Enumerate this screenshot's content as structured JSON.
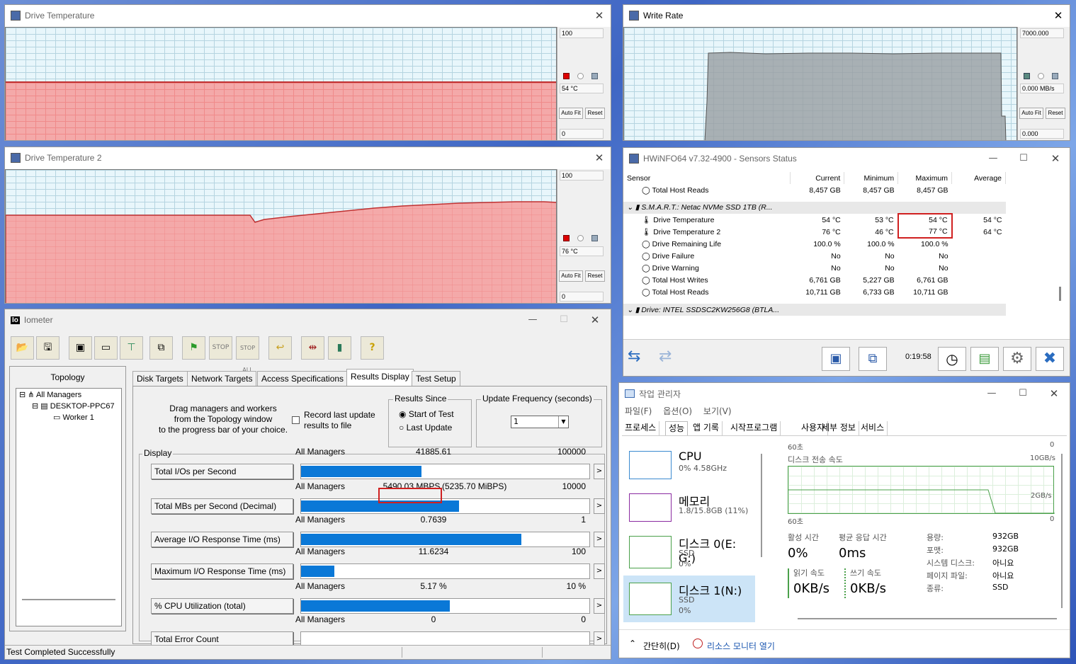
{
  "drive_temp": {
    "title": "Drive Temperature",
    "max": "100",
    "current": "54 °C",
    "min": "0",
    "autofit": "Auto Fit",
    "reset": "Reset",
    "level": 54
  },
  "drive_temp2": {
    "title": "Drive Temperature 2",
    "max": "100",
    "current": "76 °C",
    "min": "0",
    "autofit": "Auto Fit",
    "reset": "Reset"
  },
  "write_rate": {
    "title": "Write Rate",
    "max": "7000.000",
    "current": "0.000 MB/s",
    "min": "0.000",
    "autofit": "Auto Fit",
    "reset": "Reset"
  },
  "hwinfo": {
    "title": "HWiNFO64 v7.32-4900 - Sensors Status",
    "headers": [
      "Sensor",
      "Current",
      "Minimum",
      "Maximum",
      "Average"
    ],
    "top_row": {
      "name": "Total Host Reads",
      "current": "8,457 GB",
      "minimum": "8,457 GB",
      "maximum": "8,457 GB",
      "average": ""
    },
    "group1": "S.M.A.R.T.: Netac NVMe SSD 1TB (R...",
    "rows": [
      {
        "name": "Drive Temperature",
        "current": "54 °C",
        "minimum": "53 °C",
        "maximum": "54 °C",
        "average": "54 °C"
      },
      {
        "name": "Drive Temperature 2",
        "current": "76 °C",
        "minimum": "46 °C",
        "maximum": "77 °C",
        "average": "64 °C"
      },
      {
        "name": "Drive Remaining Life",
        "current": "100.0 %",
        "minimum": "100.0 %",
        "maximum": "100.0 %",
        "average": ""
      },
      {
        "name": "Drive Failure",
        "current": "No",
        "minimum": "No",
        "maximum": "No",
        "average": ""
      },
      {
        "name": "Drive Warning",
        "current": "No",
        "minimum": "No",
        "maximum": "No",
        "average": ""
      },
      {
        "name": "Total Host Writes",
        "current": "6,761 GB",
        "minimum": "5,227 GB",
        "maximum": "6,761 GB",
        "average": ""
      },
      {
        "name": "Total Host Reads",
        "current": "10,711 GB",
        "minimum": "6,733 GB",
        "maximum": "10,711 GB",
        "average": ""
      }
    ],
    "group2": "Drive: INTEL SSDSC2KW256G8 (BTLA...",
    "timer": "0:19:58"
  },
  "iometer": {
    "title": "Iometer",
    "topology_label": "Topology",
    "tree": [
      "All Managers",
      "DESKTOP-PPC67",
      "Worker 1"
    ],
    "tabs": [
      "Disk Targets",
      "Network Targets",
      "Access Specifications",
      "Results Display",
      "Test Setup"
    ],
    "drag_text": [
      "Drag managers and workers",
      "from the Topology window",
      "to the progress bar of your choice."
    ],
    "record_label": [
      "Record last update",
      "results to file"
    ],
    "results_since": {
      "title": "Results Since",
      "opt1": "Start of Test",
      "opt2": "Last Update"
    },
    "update_freq": {
      "title": "Update Frequency (seconds)",
      "value": "1"
    },
    "display_label": "Display",
    "rows": [
      {
        "label": "Total I/Os per Second",
        "mgr": "All Managers",
        "value": "41885.61",
        "extra": "",
        "max": "100000",
        "fill": 0.4189
      },
      {
        "label": "Total MBs per Second (Decimal)",
        "mgr": "All Managers",
        "value": "5490.03 MBPS",
        "extra": "(5235.70 MiBPS)",
        "max": "10000",
        "fill": 0.549
      },
      {
        "label": "Average I/O Response Time (ms)",
        "mgr": "All Managers",
        "value": "0.7639",
        "extra": "",
        "max": "1",
        "fill": 0.7639
      },
      {
        "label": "Maximum I/O Response Time (ms)",
        "mgr": "All Managers",
        "value": "11.6234",
        "extra": "",
        "max": "100",
        "fill": 0.1162
      },
      {
        "label": "% CPU Utilization (total)",
        "mgr": "All Managers",
        "value": "5.17 %",
        "extra": "",
        "max": "10 %",
        "fill": 0.517
      },
      {
        "label": "Total Error Count",
        "mgr": "All Managers",
        "value": "0",
        "extra": "",
        "max": "0",
        "fill": 0
      }
    ],
    "status": "Test Completed Successfully"
  },
  "taskmgr": {
    "title": "작업 관리자",
    "menu": [
      "파일(F)",
      "옵션(O)",
      "보기(V)"
    ],
    "tabs": [
      "프로세스",
      "성능",
      "앱 기록",
      "시작프로그램",
      "사용자",
      "세부 정보",
      "서비스"
    ],
    "side": [
      {
        "name": "CPU",
        "l1": "0% 4.58GHz",
        "l2": ""
      },
      {
        "name": "메모리",
        "l1": "1.8/15.8GB (11%)",
        "l2": ""
      },
      {
        "name": "디스크 0(E: G:)",
        "l1": "SSD",
        "l2": "0%"
      },
      {
        "name": "디스크 1(N:)",
        "l1": "SSD",
        "l2": "0%"
      }
    ],
    "graph1": {
      "left": "60초",
      "right": "0"
    },
    "graph2": {
      "title": "디스크 전송 속도",
      "max": "10GB/s",
      "mid": "2GB/s",
      "left": "60초",
      "right": "0"
    },
    "stats": {
      "active_label": "활성 시간",
      "active": "0%",
      "resp_label": "평균 응답 시간",
      "resp": "0ms",
      "read_label": "읽기 속도",
      "read": "0KB/s",
      "write_label": "쓰기 속도",
      "write": "0KB/s"
    },
    "info": [
      [
        "용량:",
        "932GB"
      ],
      [
        "포맷:",
        "932GB"
      ],
      [
        "시스템 디스크:",
        "아니요"
      ],
      [
        "페이지 파일:",
        "아니요"
      ],
      [
        "종류:",
        "SSD"
      ]
    ],
    "footer": {
      "simple": "간단히(D)",
      "monitor": "리소스 모니터 열기"
    }
  }
}
